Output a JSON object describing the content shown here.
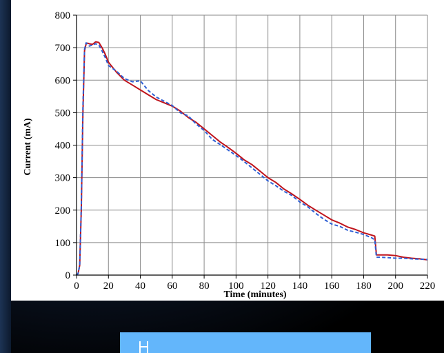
{
  "chart_data": {
    "type": "line",
    "xlabel": "Time (minutes)",
    "ylabel": "Current (mA)",
    "xlim": [
      0,
      220
    ],
    "ylim": [
      0,
      800
    ],
    "x_ticks": [
      0,
      20,
      40,
      60,
      80,
      100,
      120,
      140,
      160,
      180,
      200,
      220
    ],
    "y_ticks": [
      0,
      100,
      200,
      300,
      400,
      500,
      600,
      700,
      800
    ],
    "grid": true,
    "legend": "none",
    "series": [
      {
        "color": "#c0141c",
        "style": "solid",
        "x": [
          0,
          1,
          2,
          3,
          4,
          5,
          6,
          7,
          8,
          10,
          12,
          14,
          16,
          18,
          20,
          25,
          30,
          35,
          40,
          45,
          50,
          55,
          60,
          65,
          70,
          75,
          80,
          85,
          90,
          95,
          100,
          105,
          110,
          115,
          120,
          125,
          130,
          135,
          140,
          145,
          150,
          155,
          160,
          165,
          170,
          175,
          180,
          185,
          187,
          188,
          190,
          195,
          200,
          205,
          210,
          215,
          220
        ],
        "y": [
          0,
          5,
          30,
          200,
          500,
          690,
          712,
          714,
          712,
          710,
          718,
          716,
          700,
          680,
          655,
          625,
          600,
          585,
          570,
          555,
          540,
          530,
          520,
          505,
          485,
          470,
          450,
          430,
          410,
          393,
          375,
          355,
          340,
          320,
          300,
          285,
          265,
          250,
          233,
          215,
          200,
          185,
          170,
          160,
          148,
          140,
          130,
          123,
          120,
          62,
          62,
          62,
          60,
          55,
          52,
          50,
          47
        ]
      },
      {
        "color": "#2e5fd4",
        "style": "dashed",
        "x": [
          0,
          1,
          2,
          3,
          4,
          5,
          6,
          7,
          8,
          10,
          12,
          14,
          16,
          18,
          20,
          25,
          30,
          35,
          40,
          45,
          50,
          55,
          60,
          65,
          70,
          75,
          80,
          85,
          90,
          95,
          100,
          105,
          110,
          115,
          120,
          125,
          130,
          135,
          140,
          145,
          150,
          155,
          160,
          165,
          170,
          175,
          180,
          185,
          187,
          188,
          190,
          195,
          200,
          205,
          210,
          215,
          220
        ],
        "y": [
          0,
          5,
          30,
          210,
          520,
          695,
          715,
          710,
          705,
          708,
          712,
          708,
          690,
          670,
          645,
          628,
          605,
          595,
          598,
          568,
          548,
          535,
          522,
          500,
          490,
          465,
          445,
          418,
          402,
          385,
          368,
          350,
          330,
          310,
          290,
          275,
          258,
          245,
          225,
          210,
          190,
          172,
          157,
          150,
          138,
          132,
          125,
          115,
          108,
          55,
          55,
          54,
          52,
          52,
          50,
          49,
          48
        ]
      }
    ]
  }
}
